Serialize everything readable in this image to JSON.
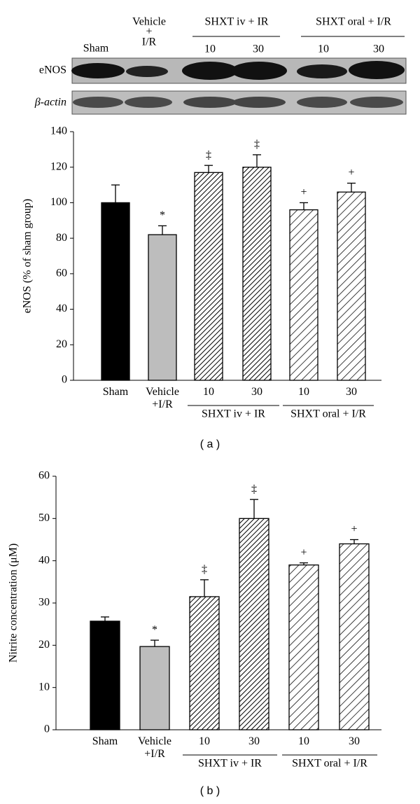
{
  "blot": {
    "sham": "Sham",
    "vehicle": [
      "Vehicle",
      "+",
      "I/R"
    ],
    "iv_group": "SHXT iv + IR",
    "iv_doses": [
      "10",
      "30"
    ],
    "oral_group": "SHXT oral + I/R",
    "oral_doses": [
      "10",
      "30"
    ],
    "rows": [
      "eNOS",
      "β-actin"
    ]
  },
  "chart_data": [
    {
      "type": "bar",
      "caption": "( a )",
      "y_label": "eNOS (% of sham group)",
      "categories": [
        "Sham",
        "Vehicle +I/R",
        "10",
        "30",
        "10",
        "30"
      ],
      "values": [
        100,
        82,
        117,
        120,
        96,
        106
      ],
      "errors": [
        10,
        5,
        4,
        7,
        4,
        5
      ],
      "marks": [
        null,
        "*",
        "‡",
        "‡",
        "+",
        "+"
      ],
      "colors": [
        "#000000",
        "#bdbdbd",
        "#000000",
        "#000000",
        "#000000",
        "#000000"
      ],
      "hatch": [
        null,
        null,
        "dense",
        "dense",
        "sparse",
        "sparse"
      ],
      "groups": [
        "SHXT iv + IR",
        "SHXT oral + I/R"
      ],
      "ylim": [
        0,
        140
      ],
      "yticks": [
        0,
        20,
        40,
        60,
        80,
        100,
        120,
        140
      ]
    },
    {
      "type": "bar",
      "caption": "( b )",
      "y_label": "Nitrite concentration (μM)",
      "categories": [
        "Sham",
        "Vehicle +I/R",
        "10",
        "30",
        "10",
        "30"
      ],
      "values": [
        25.7,
        19.7,
        31.5,
        50,
        39,
        44
      ],
      "errors": [
        1,
        1.5,
        4,
        4.5,
        0.5,
        1
      ],
      "marks": [
        null,
        "*",
        "‡",
        "‡",
        "+",
        "+"
      ],
      "colors": [
        "#000000",
        "#bdbdbd",
        "#000000",
        "#000000",
        "#000000",
        "#000000"
      ],
      "hatch": [
        null,
        null,
        "dense",
        "dense",
        "sparse",
        "sparse"
      ],
      "groups": [
        "SHXT iv + IR",
        "SHXT oral + I/R"
      ],
      "ylim": [
        0,
        60
      ],
      "yticks": [
        0,
        10,
        20,
        30,
        40,
        50,
        60
      ]
    }
  ]
}
